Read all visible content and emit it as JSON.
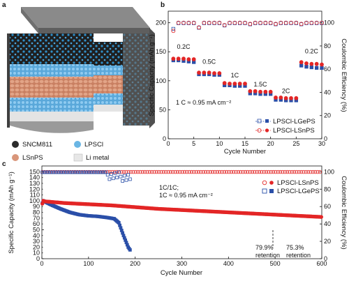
{
  "panels": {
    "a": "a",
    "b": "b",
    "c": "c"
  },
  "legend_a": [
    {
      "label": "SNCM811",
      "color": "#2b2b2b"
    },
    {
      "label": "LPSCl",
      "color": "#6ab6e4"
    },
    {
      "label": "LSnPS",
      "color": "#d9967a"
    },
    {
      "label": "Li metal",
      "color": "#e7e7e7"
    }
  ],
  "colors": {
    "red": "#e32626",
    "blue": "#2a4fa8"
  },
  "chart_data": [
    {
      "id": "b",
      "type": "scatter",
      "xlabel": "Cycle Number",
      "ylabel": "Specific Capacity (mAh g⁻¹)",
      "y2label": "Coulombic Efficiency (%)",
      "xlim": [
        0,
        30
      ],
      "ylim": [
        0,
        220
      ],
      "y2lim": [
        0,
        110
      ],
      "xticks": [
        "0",
        "5",
        "10",
        "15",
        "20",
        "25",
        "30"
      ],
      "yticks": [
        "0",
        "50",
        "100",
        "150",
        "200"
      ],
      "y2ticks": [
        "0",
        "20",
        "40",
        "60",
        "80",
        "100"
      ],
      "rates": [
        {
          "label": "0.2C",
          "x": 3,
          "y": 155
        },
        {
          "label": "0.5C",
          "x": 8,
          "y": 129
        },
        {
          "label": "1C",
          "x": 13,
          "y": 106
        },
        {
          "label": "1.5C",
          "x": 18,
          "y": 90
        },
        {
          "label": "2C",
          "x": 23,
          "y": 79
        },
        {
          "label": "0.2C",
          "x": 28,
          "y": 147
        }
      ],
      "note": "1 C ≈ 0.95 mA cm⁻²",
      "legend": [
        "LPSCl-LGePS",
        "LPSCl-LSnPS"
      ],
      "series": [
        {
          "name": "LPSCl-LGePS",
          "color": "#2a4fa8",
          "capacity": [
            [
              1,
              137
            ],
            [
              2,
              137
            ],
            [
              3,
              136
            ],
            [
              4,
              135
            ],
            [
              5,
              134
            ],
            [
              6,
              113
            ],
            [
              7,
              113
            ],
            [
              8,
              113
            ],
            [
              9,
              112
            ],
            [
              10,
              112
            ],
            [
              11,
              94
            ],
            [
              12,
              94
            ],
            [
              13,
              93
            ],
            [
              14,
              93
            ],
            [
              15,
              93
            ],
            [
              16,
              80
            ],
            [
              17,
              80
            ],
            [
              18,
              79
            ],
            [
              19,
              79
            ],
            [
              20,
              79
            ],
            [
              21,
              69
            ],
            [
              22,
              69
            ],
            [
              23,
              68
            ],
            [
              24,
              68
            ],
            [
              25,
              68
            ],
            [
              26,
              128
            ],
            [
              27,
              126
            ],
            [
              28,
              125
            ],
            [
              29,
              124
            ],
            [
              30,
              124
            ]
          ],
          "efficiency": [
            [
              1,
              95
            ],
            [
              2,
              100
            ],
            [
              3,
              100
            ],
            [
              4,
              100
            ],
            [
              5,
              100
            ],
            [
              6,
              96
            ],
            [
              7,
              100
            ],
            [
              8,
              100
            ],
            [
              9,
              100
            ],
            [
              10,
              100
            ],
            [
              11,
              98
            ],
            [
              12,
              100
            ],
            [
              13,
              100
            ],
            [
              14,
              100
            ],
            [
              15,
              100
            ],
            [
              16,
              99
            ],
            [
              17,
              100
            ],
            [
              18,
              100
            ],
            [
              19,
              100
            ],
            [
              20,
              100
            ],
            [
              21,
              99
            ],
            [
              22,
              100
            ],
            [
              23,
              100
            ],
            [
              24,
              100
            ],
            [
              25,
              100
            ],
            [
              26,
              99
            ],
            [
              27,
              100
            ],
            [
              28,
              100
            ],
            [
              29,
              100
            ],
            [
              30,
              100
            ]
          ]
        },
        {
          "name": "LPSCl-LSnPS",
          "color": "#e32626",
          "capacity": [
            [
              1,
              138
            ],
            [
              2,
              138
            ],
            [
              3,
              138
            ],
            [
              4,
              137
            ],
            [
              5,
              137
            ],
            [
              6,
              114
            ],
            [
              7,
              114
            ],
            [
              8,
              114
            ],
            [
              9,
              113
            ],
            [
              10,
              113
            ],
            [
              11,
              96
            ],
            [
              12,
              95
            ],
            [
              13,
              95
            ],
            [
              14,
              95
            ],
            [
              15,
              95
            ],
            [
              16,
              82
            ],
            [
              17,
              82
            ],
            [
              18,
              81
            ],
            [
              19,
              81
            ],
            [
              20,
              81
            ],
            [
              21,
              71
            ],
            [
              22,
              71
            ],
            [
              23,
              70
            ],
            [
              24,
              70
            ],
            [
              25,
              70
            ],
            [
              26,
              132
            ],
            [
              27,
              130
            ],
            [
              28,
              129
            ],
            [
              29,
              129
            ],
            [
              30,
              128
            ]
          ],
          "efficiency": [
            [
              1,
              93
            ],
            [
              2,
              100
            ],
            [
              3,
              100
            ],
            [
              4,
              100
            ],
            [
              5,
              100
            ],
            [
              6,
              96
            ],
            [
              7,
              100
            ],
            [
              8,
              100
            ],
            [
              9,
              100
            ],
            [
              10,
              100
            ],
            [
              11,
              98
            ],
            [
              12,
              100
            ],
            [
              13,
              100
            ],
            [
              14,
              100
            ],
            [
              15,
              100
            ],
            [
              16,
              99
            ],
            [
              17,
              100
            ],
            [
              18,
              100
            ],
            [
              19,
              100
            ],
            [
              20,
              100
            ],
            [
              21,
              99
            ],
            [
              22,
              100
            ],
            [
              23,
              100
            ],
            [
              24,
              100
            ],
            [
              25,
              100
            ],
            [
              26,
              99
            ],
            [
              27,
              100
            ],
            [
              28,
              100
            ],
            [
              29,
              100
            ],
            [
              30,
              100
            ]
          ]
        }
      ]
    },
    {
      "id": "c",
      "type": "scatter",
      "xlabel": "Cycle Number",
      "ylabel": "Specific Capacity (mAh g⁻¹)",
      "y2label": "Coulombic Efficiency (%)",
      "xlim": [
        0,
        600
      ],
      "ylim": [
        0,
        160
      ],
      "y2lim": [
        0,
        106.7
      ],
      "xticks": [
        "0",
        "100",
        "200",
        "300",
        "400",
        "500",
        "600"
      ],
      "yticks": [
        "0",
        "10",
        "20",
        "30",
        "40",
        "50",
        "60",
        "70",
        "80",
        "90",
        "100",
        "110",
        "120",
        "130",
        "140",
        "150"
      ],
      "y2ticks": [
        "0",
        "20",
        "40",
        "60",
        "80",
        "100"
      ],
      "note_line1": "1C/1C;",
      "note_line2": "1C ≈ 0.95 mA cm⁻²",
      "legend": [
        "LPSCl-LSnPS",
        "LPSCl-LGePS"
      ],
      "annotations": [
        {
          "lines": [
            "79.9%",
            "retention"
          ],
          "x": 452
        },
        {
          "lines": [
            "75.3%",
            "retention"
          ],
          "x": 560
        }
      ],
      "series": [
        {
          "name": "LPSCl-LSnPS",
          "color": "#e32626",
          "capacity_points": [
            [
              1,
              95
            ],
            [
              3,
              100
            ],
            [
              5,
              99
            ],
            [
              20,
              98
            ],
            [
              50,
              96
            ],
            [
              100,
              94
            ],
            [
              150,
              92
            ],
            [
              200,
              89
            ],
            [
              250,
              86
            ],
            [
              300,
              84
            ],
            [
              350,
              82
            ],
            [
              400,
              80
            ],
            [
              450,
              78
            ],
            [
              500,
              76
            ],
            [
              550,
              74
            ],
            [
              600,
              72
            ]
          ],
          "efficiency": 99.8
        },
        {
          "name": "LPSCl-LGePS",
          "color": "#2a4fa8",
          "capacity_points": [
            [
              1,
              96
            ],
            [
              3,
              100
            ],
            [
              5,
              99
            ],
            [
              20,
              93
            ],
            [
              40,
              86
            ],
            [
              60,
              80
            ],
            [
              80,
              76
            ],
            [
              100,
              74
            ],
            [
              120,
              73
            ],
            [
              140,
              71
            ],
            [
              155,
              69
            ],
            [
              165,
              62
            ],
            [
              175,
              40
            ],
            [
              185,
              20
            ],
            [
              190,
              14
            ]
          ],
          "efficiency_end": 190
        }
      ]
    }
  ]
}
